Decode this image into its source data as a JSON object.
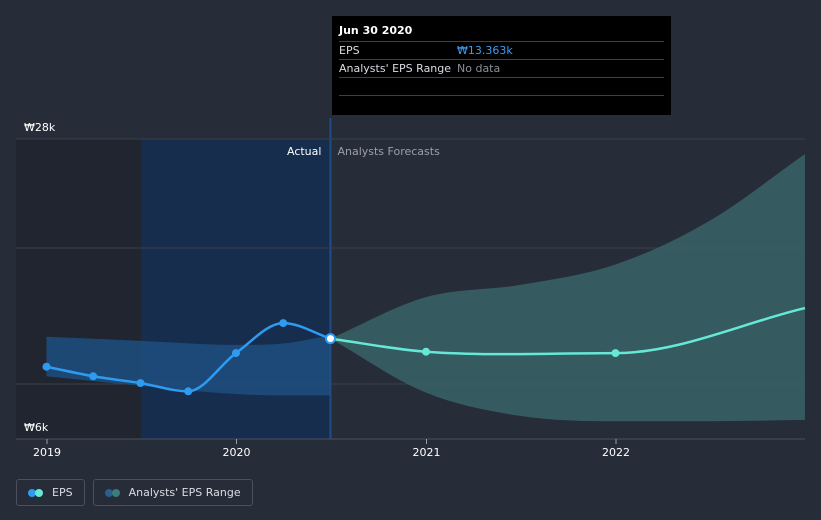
{
  "tooltip": {
    "date": "Jun 30 2020",
    "rows": [
      {
        "label": "EPS",
        "value": "₩13.363k"
      },
      {
        "label": "Analysts' EPS Range",
        "value": "No data"
      }
    ]
  },
  "legend": [
    {
      "label": "EPS",
      "colors": [
        "#2f9bf0",
        "#66e8d6"
      ]
    },
    {
      "label": "Analysts' EPS Range",
      "colors": [
        "#2a5f8e",
        "#3b7c7c"
      ]
    }
  ],
  "chart_data": {
    "type": "line",
    "y_tick_labels": [
      "₩28k",
      "₩6k"
    ],
    "ylim": [
      6000,
      28000
    ],
    "x_tick_labels": [
      "2019",
      "2020",
      "2021",
      "2022"
    ],
    "xlim": [
      "2019-01-01",
      "2022-12-31"
    ],
    "divider_date": "2020-06-30",
    "region_labels": {
      "actual": "Actual",
      "forecast": "Analysts Forecasts"
    },
    "colors": {
      "actual": "#2f9bf0",
      "forecast": "#66e8d6",
      "actual_band": "#1e4f80",
      "forecast_band": "#3b6a6d",
      "highlight": "#14305a"
    },
    "series": [
      {
        "name": "EPS",
        "kind": "actual",
        "x": [
          "2018-12-31",
          "2019-03-31",
          "2019-06-30",
          "2019-09-30",
          "2019-12-31",
          "2020-03-31",
          "2020-06-30"
        ],
        "y": [
          11300,
          10600,
          10100,
          9500,
          12300,
          14500,
          13363
        ]
      },
      {
        "name": "EPS",
        "kind": "forecast",
        "x": [
          "2020-06-30",
          "2020-12-31",
          "2021-12-31",
          "2022-12-31"
        ],
        "y": [
          13363,
          12400,
          12300,
          15600
        ]
      }
    ],
    "ranges": [
      {
        "name": "Analysts' EPS Range",
        "kind": "actual",
        "x": [
          "2018-12-31",
          "2019-06-30",
          "2019-12-31",
          "2020-03-31",
          "2020-06-30"
        ],
        "low": [
          10600,
          9900,
          9300,
          9200,
          9200
        ],
        "high": [
          13500,
          13200,
          12900,
          13000,
          13600
        ]
      },
      {
        "name": "Analysts' EPS Range",
        "kind": "forecast",
        "x": [
          "2020-06-30",
          "2020-12-31",
          "2021-06-30",
          "2021-12-31",
          "2022-06-30",
          "2022-12-31"
        ],
        "low": [
          13363,
          9400,
          7700,
          7300,
          7300,
          7400
        ],
        "high": [
          13363,
          16400,
          17300,
          18800,
          22000,
          26900
        ]
      }
    ]
  }
}
